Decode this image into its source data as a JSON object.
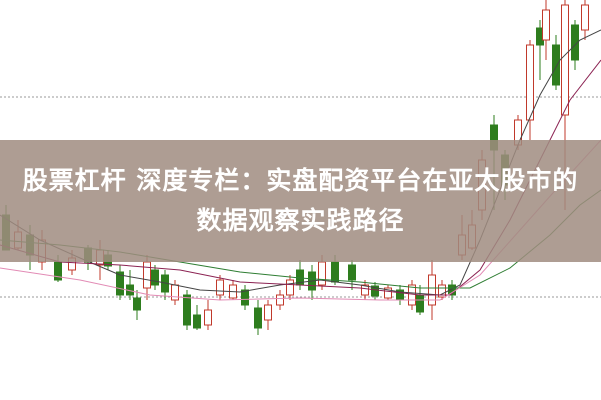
{
  "title": {
    "line1": "股票杠杆  深度专栏：实盘配资平台在亚太股市的",
    "line2": "数据观察实践路径"
  },
  "colors": {
    "up_candle": "#c0392b",
    "down_candle": "#2e7d1e",
    "banner": "#a08c80",
    "ma_short": "#444444",
    "ma_mid": "#8b2252",
    "ma_long": "#2e7d32",
    "ma_xlong": "#e28bb5"
  }
}
